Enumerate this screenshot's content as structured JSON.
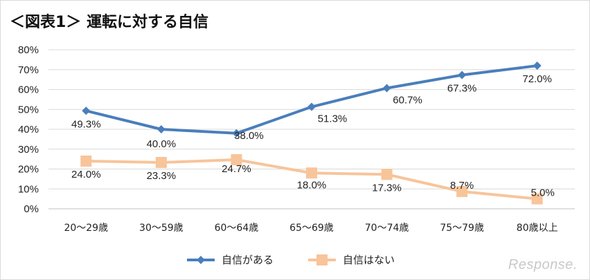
{
  "title": "＜図表1＞ 運転に対する自信",
  "watermark": "Response.",
  "chart_data": {
    "type": "line",
    "categories": [
      "20～29歳",
      "30～59歳",
      "60～64歳",
      "65～69歳",
      "70～74歳",
      "75～79歳",
      "80歳以上"
    ],
    "series": [
      {
        "name": "自信がある",
        "values": [
          49.3,
          40.0,
          38.0,
          51.3,
          60.7,
          67.3,
          72.0
        ],
        "labels": [
          "49.3%",
          "40.0%",
          "38.0%",
          "51.3%",
          "60.7%",
          "67.3%",
          "72.0%"
        ],
        "color": "#4a7ebb",
        "marker": "diamond"
      },
      {
        "name": "自信はない",
        "values": [
          24.0,
          23.3,
          24.7,
          18.0,
          17.3,
          8.7,
          5.0
        ],
        "labels": [
          "24.0%",
          "23.3%",
          "24.7%",
          "18.0%",
          "17.3%",
          "8.7%",
          "5.0%"
        ],
        "color": "#f8c49a",
        "marker": "square"
      }
    ],
    "y_ticks": [
      "0%",
      "10%",
      "20%",
      "30%",
      "40%",
      "50%",
      "60%",
      "70%",
      "80%"
    ],
    "ylim": [
      0,
      80
    ],
    "grid": true,
    "legend_position": "bottom"
  }
}
